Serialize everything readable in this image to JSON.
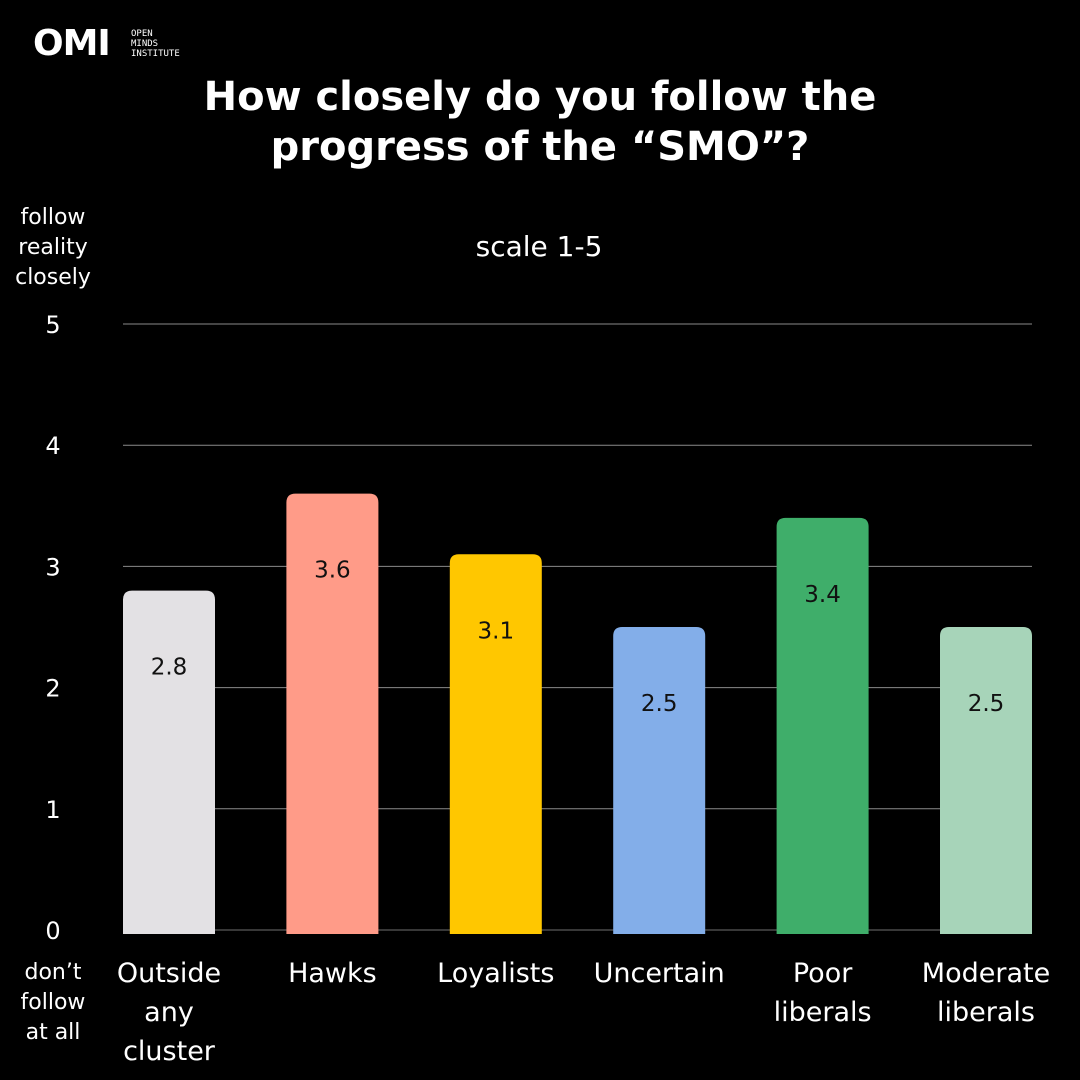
{
  "logo": {
    "mark": "OMI",
    "lines": [
      "OPEN",
      "MINDS",
      "INSTITUTE"
    ]
  },
  "chart_data": {
    "type": "bar",
    "title_lines": [
      "How closely do you follow the",
      "progress of the “SMO”?"
    ],
    "subtitle": "scale 1-5",
    "y_top_label": [
      "follow",
      "reality",
      "closely"
    ],
    "y_bottom_label": [
      "don’t",
      "follow",
      "at all"
    ],
    "categories": [
      [
        "Outside",
        "any",
        "cluster"
      ],
      [
        "Hawks"
      ],
      [
        "Loyalists"
      ],
      [
        "Uncertain"
      ],
      [
        "Poor",
        "liberals"
      ],
      [
        "Moderate",
        "liberals"
      ]
    ],
    "values": [
      2.8,
      3.6,
      3.1,
      2.5,
      3.4,
      2.5
    ],
    "data_labels": [
      "2.8",
      "3.6",
      "3.1",
      "2.5",
      "3.4",
      "2.5"
    ],
    "colors": [
      "#e3e1e4",
      "#ff9b88",
      "#ffc700",
      "#83aee9",
      "#3fae6a",
      "#a7d4b9"
    ],
    "yticks": [
      "0",
      "1",
      "2",
      "3",
      "4",
      "5"
    ],
    "ylim": [
      0,
      5
    ],
    "grid": true,
    "legend": "none"
  }
}
